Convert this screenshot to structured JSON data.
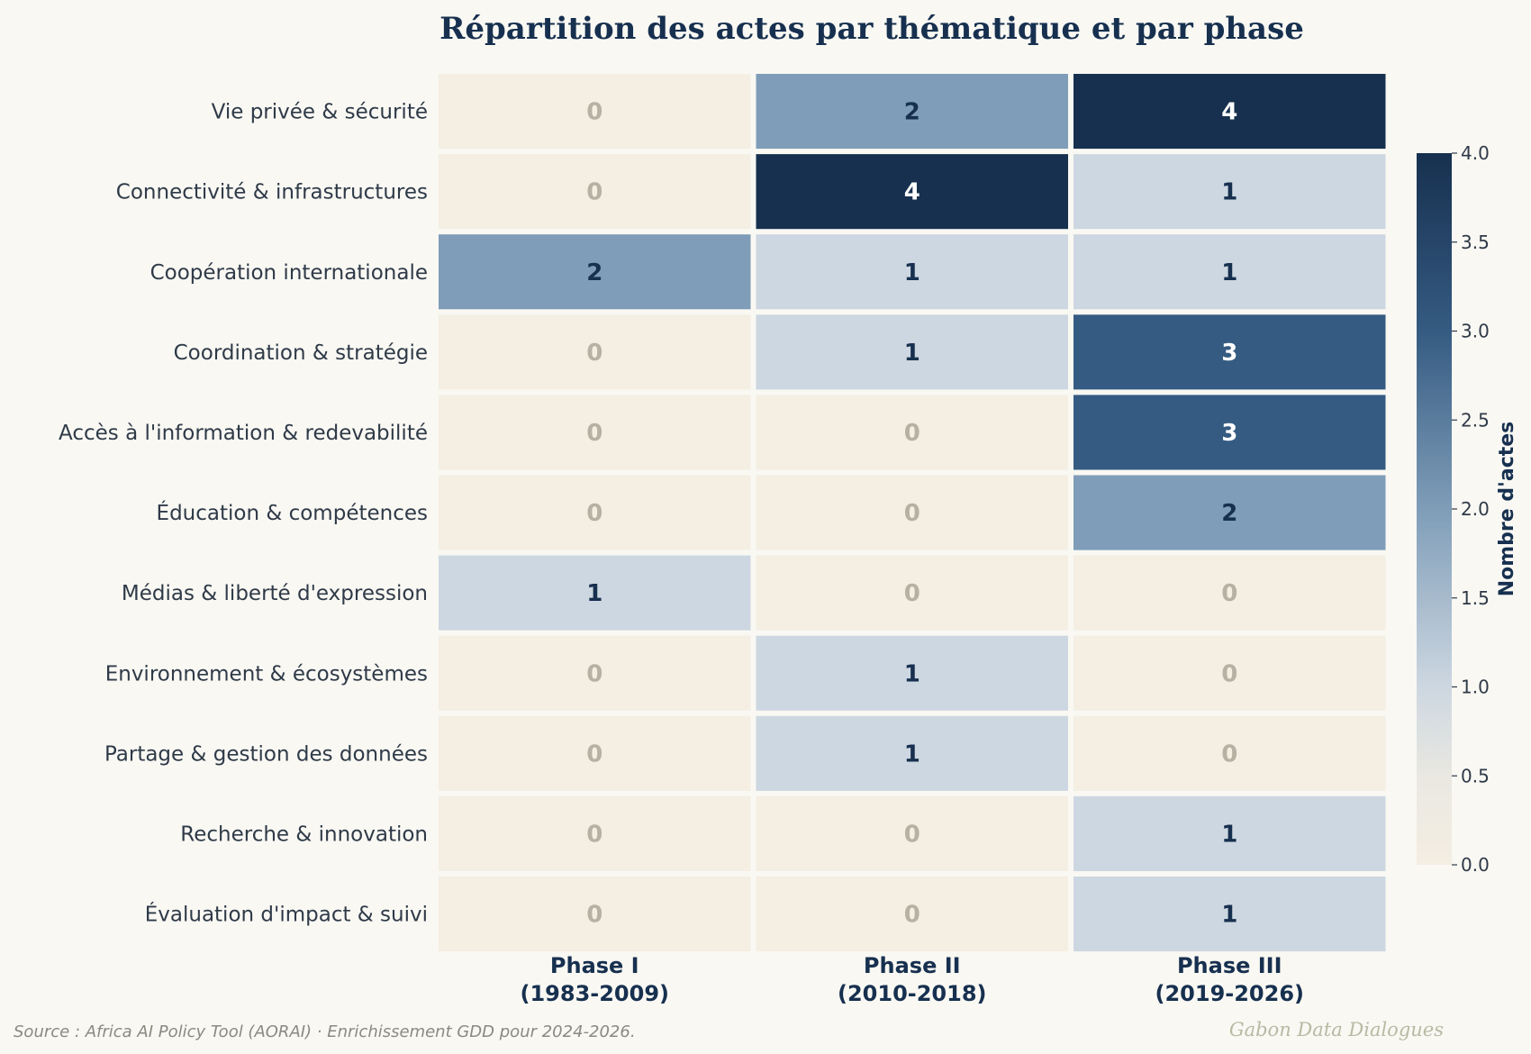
{
  "chart_data": {
    "type": "heatmap",
    "title": "Répartition des actes par thématique et par phase",
    "rows": [
      "Vie privée & sécurité",
      "Connectivité & infrastructures",
      "Coopération internationale",
      "Coordination & stratégie",
      "Accès à l'information & redevabilité",
      "Éducation & compétences",
      "Médias & liberté d'expression",
      "Environnement & écosystèmes",
      "Partage & gestion des données",
      "Recherche & innovation",
      "Évaluation d'impact & suivi"
    ],
    "columns": [
      {
        "line1": "Phase I",
        "line2": "(1983-2009)"
      },
      {
        "line1": "Phase II",
        "line2": "(2010-2018)"
      },
      {
        "line1": "Phase III",
        "line2": "(2019-2026)"
      }
    ],
    "values": [
      [
        0,
        2,
        4
      ],
      [
        0,
        4,
        1
      ],
      [
        2,
        1,
        1
      ],
      [
        0,
        1,
        3
      ],
      [
        0,
        0,
        3
      ],
      [
        0,
        0,
        2
      ],
      [
        1,
        0,
        0
      ],
      [
        0,
        1,
        0
      ],
      [
        0,
        1,
        0
      ],
      [
        0,
        0,
        1
      ],
      [
        0,
        0,
        1
      ]
    ],
    "colorbar": {
      "label": "Nombre d'actes",
      "min": 0,
      "max": 4,
      "ticks": [
        "0.0",
        "0.5",
        "1.0",
        "1.5",
        "2.0",
        "2.5",
        "3.0",
        "3.5",
        "4.0"
      ],
      "colors": [
        "#f4eee3",
        "#cdd7e1",
        "#7f9db8",
        "#355b82",
        "#17304f"
      ]
    },
    "grid": false,
    "legend": "right"
  },
  "footer": {
    "source": "Source : Africa AI Policy Tool (AORAI) · Enrichissement GDD pour 2024-2026.",
    "watermark": "Gabon Data Dialogues"
  }
}
